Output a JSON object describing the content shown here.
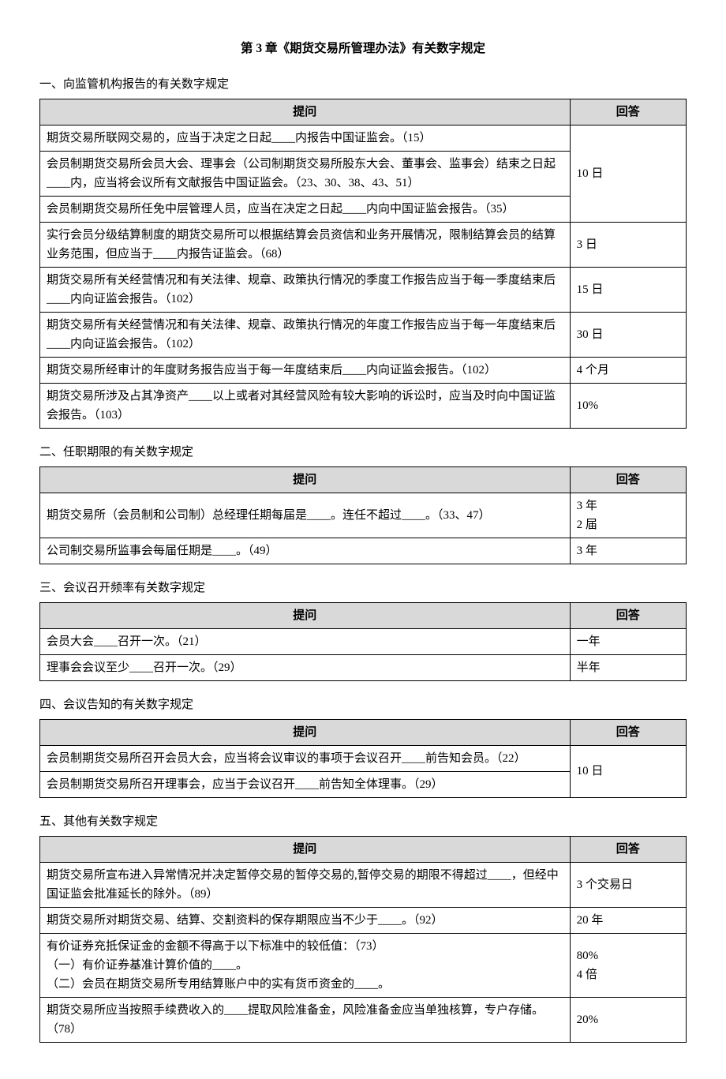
{
  "title": "第 3 章《期货交易所管理办法》有关数字规定",
  "headers": {
    "question": "提问",
    "answer": "回答"
  },
  "sections": [
    {
      "heading": "一、向监管机构报告的有关数字规定",
      "rows": [
        {
          "q": "期货交易所联网交易的，应当于决定之日起____内报告中国证监会。（15）",
          "a": "10 日",
          "aspan": 3
        },
        {
          "q": "会员制期货交易所会员大会、理事会（公司制期货交易所股东大会、董事会、监事会）结束之日起____内，应当将会议所有文献报告中国证监会。（23、30、38、43、51）"
        },
        {
          "q": "会员制期货交易所任免中层管理人员，应当在决定之日起____内向中国证监会报告。（35）"
        },
        {
          "q": "实行会员分级结算制度的期货交易所可以根据结算会员资信和业务开展情况，限制结算会员的结算业务范围，但应当于____内报告证监会。（68）",
          "a": "3 日"
        },
        {
          "q": "期货交易所有关经营情况和有关法律、规章、政策执行情况的季度工作报告应当于每一季度结束后____内向证监会报告。（102）",
          "a": "15 日"
        },
        {
          "q": "期货交易所有关经营情况和有关法律、规章、政策执行情况的年度工作报告应当于每一年度结束后____内向证监会报告。（102）",
          "a": "30 日"
        },
        {
          "q": "期货交易所经审计的年度财务报告应当于每一年度结束后____内向证监会报告。（102）",
          "a": "4 个月"
        },
        {
          "q": "期货交易所涉及占其净资产____以上或者对其经营风险有较大影响的诉讼时，应当及时向中国证监会报告。（103）",
          "a": "10%"
        }
      ]
    },
    {
      "heading": "二、任职期限的有关数字规定",
      "rows": [
        {
          "q": "期货交易所（会员制和公司制）总经理任期每届是____。连任不超过____。（33、47）",
          "a": "3 年\n2 届"
        },
        {
          "q": "公司制交易所监事会每届任期是____。（49）",
          "a": "3 年"
        }
      ]
    },
    {
      "heading": "三、会议召开频率有关数字规定",
      "rows": [
        {
          "q": "会员大会____召开一次。（21）",
          "a": "一年"
        },
        {
          "q": "理事会会议至少____召开一次。（29）",
          "a": "半年"
        }
      ]
    },
    {
      "heading": "四、会议告知的有关数字规定",
      "rows": [
        {
          "q": "会员制期货交易所召开会员大会，应当将会议审议的事项于会议召开____前告知会员。（22）",
          "a": "10 日",
          "aspan": 2
        },
        {
          "q": "会员制期货交易所召开理事会，应当于会议召开____前告知全体理事。（29）"
        }
      ]
    },
    {
      "heading": "五、其他有关数字规定",
      "rows": [
        {
          "q": "期货交易所宣布进入异常情况并决定暂停交易的暂停交易的,暂停交易的期限不得超过____，但经中国证监会批准延长的除外。（89）",
          "a": "3 个交易日"
        },
        {
          "q": "期货交易所对期货交易、结算、交割资料的保存期限应当不少于____。（92）",
          "a": "20 年"
        },
        {
          "q": "有价证券充抵保证金的金额不得高于以下标准中的较低值：（73）\n（一）有价证券基准计算价值的____。\n（二）会员在期货交易所专用结算账户中的实有货币资金的____。",
          "a": "80%\n4 倍"
        },
        {
          "q": "期货交易所应当按照手续费收入的____提取风险准备金，风险准备金应当单独核算，专户存储。（78）",
          "a": "20%"
        }
      ]
    }
  ]
}
